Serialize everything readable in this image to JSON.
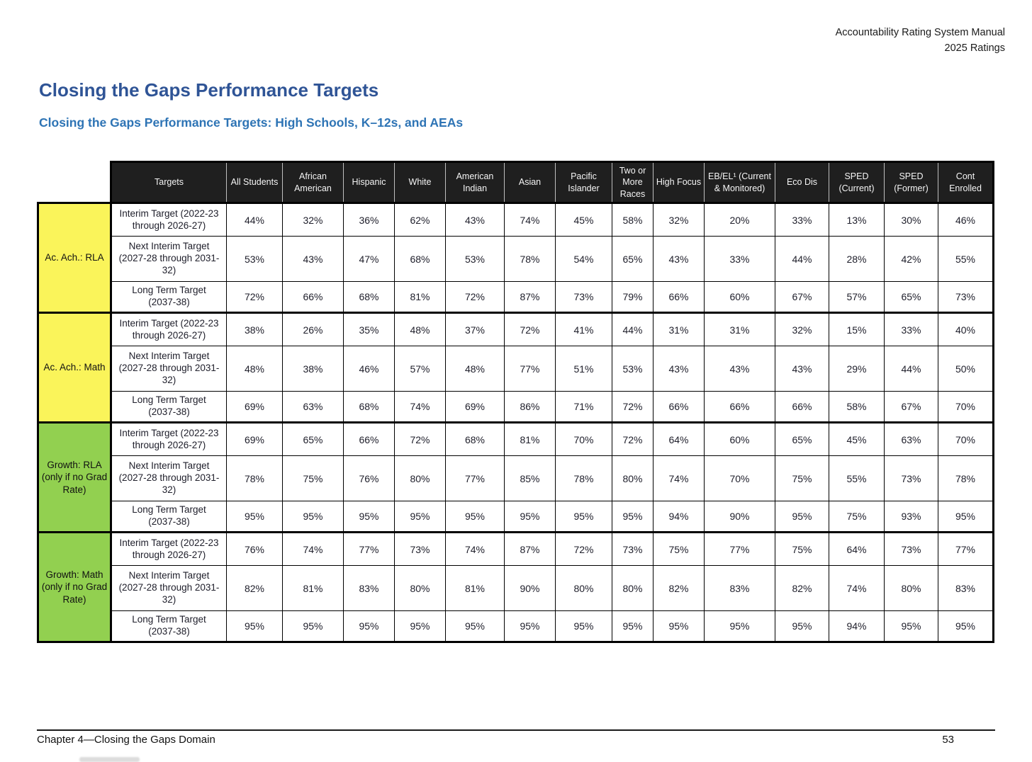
{
  "document_header": {
    "line1": "Accountability Rating System Manual",
    "line2": "2025 Ratings"
  },
  "heading": "Closing the Gaps Performance Targets",
  "subheading": "Closing the Gaps Performance Targets: High Schools, K–12s, and AEAs",
  "table": {
    "columns": [
      "Targets",
      "All Students",
      "African American",
      "Hispanic",
      "White",
      "American Indian",
      "Asian",
      "Pacific Islander",
      "Two or More Races",
      "High Focus",
      "EB/EL¹ (Current & Monitored)",
      "Eco Dis",
      "SPED (Current)",
      "SPED (Former)",
      "Cont Enrolled"
    ],
    "groups": [
      {
        "label": "Ac. Ach.: RLA",
        "color": "#FAF45A",
        "rows": [
          {
            "target": "Interim Target (2022-23 through 2026-27)",
            "values": [
              "44%",
              "32%",
              "36%",
              "62%",
              "43%",
              "74%",
              "45%",
              "58%",
              "32%",
              "20%",
              "33%",
              "13%",
              "30%",
              "46%"
            ]
          },
          {
            "target": "Next Interim Target (2027-28 through 2031-32)",
            "values": [
              "53%",
              "43%",
              "47%",
              "68%",
              "53%",
              "78%",
              "54%",
              "65%",
              "43%",
              "33%",
              "44%",
              "28%",
              "42%",
              "55%"
            ]
          },
          {
            "target": "Long Term Target (2037-38)",
            "values": [
              "72%",
              "66%",
              "68%",
              "81%",
              "72%",
              "87%",
              "73%",
              "79%",
              "66%",
              "60%",
              "67%",
              "57%",
              "65%",
              "73%"
            ]
          }
        ]
      },
      {
        "label": "Ac. Ach.: Math",
        "color": "#FAF45A",
        "rows": [
          {
            "target": "Interim Target (2022-23 through 2026-27)",
            "values": [
              "38%",
              "26%",
              "35%",
              "48%",
              "37%",
              "72%",
              "41%",
              "44%",
              "31%",
              "31%",
              "32%",
              "15%",
              "33%",
              "40%"
            ]
          },
          {
            "target": "Next Interim Target (2027-28 through 2031-32)",
            "values": [
              "48%",
              "38%",
              "46%",
              "57%",
              "48%",
              "77%",
              "51%",
              "53%",
              "43%",
              "43%",
              "43%",
              "29%",
              "44%",
              "50%"
            ]
          },
          {
            "target": "Long Term Target (2037-38)",
            "values": [
              "69%",
              "63%",
              "68%",
              "74%",
              "69%",
              "86%",
              "71%",
              "72%",
              "66%",
              "66%",
              "66%",
              "58%",
              "67%",
              "70%"
            ]
          }
        ]
      },
      {
        "label": "Growth: RLA (only if no Grad Rate)",
        "color": "#92D050",
        "rows": [
          {
            "target": "Interim Target (2022-23 through 2026-27)",
            "values": [
              "69%",
              "65%",
              "66%",
              "72%",
              "68%",
              "81%",
              "70%",
              "72%",
              "64%",
              "60%",
              "65%",
              "45%",
              "63%",
              "70%"
            ]
          },
          {
            "target": "Next Interim Target (2027-28 through 2031-32)",
            "values": [
              "78%",
              "75%",
              "76%",
              "80%",
              "77%",
              "85%",
              "78%",
              "80%",
              "74%",
              "70%",
              "75%",
              "55%",
              "73%",
              "78%"
            ]
          },
          {
            "target": "Long Term Target (2037-38)",
            "values": [
              "95%",
              "95%",
              "95%",
              "95%",
              "95%",
              "95%",
              "95%",
              "95%",
              "94%",
              "90%",
              "95%",
              "75%",
              "93%",
              "95%"
            ]
          }
        ]
      },
      {
        "label": "Growth: Math (only if no Grad Rate)",
        "color": "#92D050",
        "rows": [
          {
            "target": "Interim Target (2022-23 through 2026-27)",
            "values": [
              "76%",
              "74%",
              "77%",
              "73%",
              "74%",
              "87%",
              "72%",
              "73%",
              "75%",
              "77%",
              "75%",
              "64%",
              "73%",
              "77%"
            ]
          },
          {
            "target": "Next Interim Target (2027-28 through 2031-32)",
            "values": [
              "82%",
              "81%",
              "83%",
              "80%",
              "81%",
              "90%",
              "80%",
              "80%",
              "82%",
              "83%",
              "82%",
              "74%",
              "80%",
              "83%"
            ]
          },
          {
            "target": "Long Term Target (2037-38)",
            "values": [
              "95%",
              "95%",
              "95%",
              "95%",
              "95%",
              "95%",
              "95%",
              "95%",
              "95%",
              "95%",
              "95%",
              "94%",
              "95%",
              "95%"
            ]
          }
        ]
      }
    ]
  },
  "footer": {
    "left_text": "Chapter 4—Closing the Gaps Domain",
    "page_number": "53"
  },
  "colors": {
    "heading": "#2F5496",
    "subheading": "#2E74B5",
    "header_bg": "#1F1F1F",
    "ac_ach_yellow": "#FAF45A",
    "growth_green": "#92D050",
    "border": "#000000"
  }
}
